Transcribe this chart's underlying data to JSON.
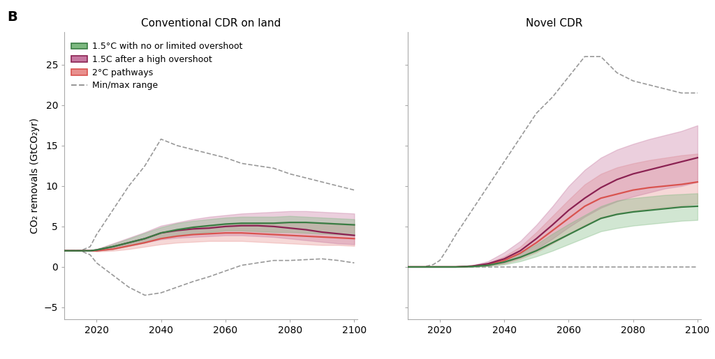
{
  "title_left": "Conventional CDR on land",
  "title_right": "Novel CDR",
  "panel_label": "B",
  "ylabel": "CO₂ removals (GtCO₂yr)",
  "ylim": [
    -6.5,
    29
  ],
  "yticks": [
    -5,
    0,
    5,
    10,
    15,
    20,
    25
  ],
  "xlim": [
    2010,
    2101
  ],
  "xticks": [
    2020,
    2040,
    2060,
    2080,
    2100
  ],
  "legend_labels": [
    "1.5°C with no or limited overshoot",
    "1.5C after a high overshoot",
    "2°C pathways",
    "Min/max range"
  ],
  "colors": {
    "green": "#3a7d44",
    "purple": "#8b2252",
    "red": "#d9534f",
    "dashed": "#999999"
  },
  "fill_colors": {
    "green": "#7cb87f",
    "purple": "#c678a0",
    "red": "#e8908e"
  },
  "left_years": [
    2010,
    2015,
    2018,
    2020,
    2025,
    2030,
    2035,
    2040,
    2045,
    2050,
    2055,
    2060,
    2065,
    2070,
    2075,
    2080,
    2085,
    2090,
    2095,
    2100
  ],
  "left_green_median": [
    2.0,
    2.0,
    2.0,
    2.1,
    2.5,
    3.0,
    3.5,
    4.2,
    4.6,
    4.9,
    5.1,
    5.3,
    5.4,
    5.4,
    5.4,
    5.5,
    5.5,
    5.4,
    5.3,
    5.2
  ],
  "left_green_low": [
    2.0,
    2.0,
    2.0,
    2.0,
    2.2,
    2.6,
    3.0,
    3.6,
    3.9,
    4.1,
    4.3,
    4.5,
    4.5,
    4.4,
    4.3,
    4.3,
    4.2,
    4.1,
    4.0,
    3.9
  ],
  "left_green_high": [
    2.0,
    2.0,
    2.0,
    2.2,
    2.8,
    3.5,
    4.2,
    4.9,
    5.4,
    5.7,
    5.9,
    6.1,
    6.2,
    6.2,
    6.2,
    6.3,
    6.2,
    6.1,
    6.0,
    5.9
  ],
  "left_purple_median": [
    2.0,
    2.0,
    2.0,
    2.1,
    2.5,
    3.0,
    3.5,
    4.2,
    4.5,
    4.7,
    4.8,
    5.0,
    5.1,
    5.1,
    5.0,
    4.8,
    4.6,
    4.3,
    4.1,
    3.9
  ],
  "left_purple_low": [
    2.0,
    2.0,
    2.0,
    2.0,
    2.2,
    2.6,
    3.0,
    3.4,
    3.6,
    3.7,
    3.8,
    3.9,
    3.9,
    3.8,
    3.7,
    3.5,
    3.3,
    3.1,
    2.9,
    2.8
  ],
  "left_purple_high": [
    2.0,
    2.0,
    2.0,
    2.2,
    2.9,
    3.6,
    4.3,
    5.1,
    5.5,
    5.9,
    6.2,
    6.4,
    6.6,
    6.7,
    6.8,
    6.9,
    6.9,
    6.8,
    6.7,
    6.6
  ],
  "left_red_median": [
    2.0,
    2.0,
    2.0,
    2.0,
    2.2,
    2.6,
    3.0,
    3.5,
    3.8,
    4.0,
    4.1,
    4.2,
    4.2,
    4.1,
    4.0,
    3.9,
    3.8,
    3.7,
    3.6,
    3.5
  ],
  "left_red_low": [
    2.0,
    2.0,
    2.0,
    1.9,
    2.0,
    2.2,
    2.5,
    2.8,
    3.0,
    3.1,
    3.2,
    3.2,
    3.2,
    3.1,
    3.0,
    2.9,
    2.8,
    2.7,
    2.7,
    2.6
  ],
  "left_red_high": [
    2.0,
    2.0,
    2.0,
    2.1,
    2.5,
    3.1,
    3.6,
    4.3,
    4.7,
    5.0,
    5.2,
    5.3,
    5.4,
    5.5,
    5.5,
    5.5,
    5.5,
    5.5,
    5.4,
    5.3
  ],
  "left_dashed_high": [
    2.0,
    2.0,
    2.5,
    4.0,
    7.0,
    10.0,
    12.5,
    15.8,
    15.0,
    14.5,
    14.0,
    13.5,
    12.8,
    12.5,
    12.2,
    11.5,
    11.0,
    10.5,
    10.0,
    9.5
  ],
  "left_dashed_low": [
    2.0,
    2.0,
    1.5,
    0.5,
    -1.0,
    -2.5,
    -3.5,
    -3.2,
    -2.5,
    -1.8,
    -1.2,
    -0.5,
    0.2,
    0.5,
    0.8,
    0.8,
    0.9,
    1.0,
    0.8,
    0.5
  ],
  "right_years": [
    2010,
    2015,
    2018,
    2020,
    2022,
    2025,
    2030,
    2035,
    2040,
    2045,
    2050,
    2055,
    2060,
    2065,
    2070,
    2075,
    2080,
    2085,
    2090,
    2095,
    2100
  ],
  "right_green_median": [
    0.0,
    0.0,
    0.0,
    0.0,
    0.0,
    0.0,
    0.05,
    0.2,
    0.6,
    1.2,
    2.0,
    3.0,
    4.0,
    5.0,
    6.0,
    6.5,
    6.8,
    7.0,
    7.2,
    7.4,
    7.5
  ],
  "right_green_low": [
    0.0,
    0.0,
    0.0,
    0.0,
    0.0,
    0.0,
    0.0,
    0.1,
    0.3,
    0.7,
    1.3,
    2.0,
    2.8,
    3.6,
    4.4,
    4.8,
    5.1,
    5.3,
    5.5,
    5.7,
    5.8
  ],
  "right_green_high": [
    0.0,
    0.0,
    0.0,
    0.0,
    0.0,
    0.0,
    0.1,
    0.4,
    0.9,
    1.7,
    2.8,
    4.1,
    5.3,
    6.4,
    7.5,
    8.2,
    8.5,
    8.7,
    8.9,
    9.0,
    9.1
  ],
  "right_purple_median": [
    0.0,
    0.0,
    0.0,
    0.0,
    0.0,
    0.0,
    0.1,
    0.4,
    1.0,
    2.0,
    3.5,
    5.2,
    7.0,
    8.5,
    9.8,
    10.8,
    11.5,
    12.0,
    12.5,
    13.0,
    13.5
  ],
  "right_purple_low": [
    0.0,
    0.0,
    0.0,
    0.0,
    0.0,
    0.0,
    0.05,
    0.2,
    0.5,
    1.2,
    2.2,
    3.5,
    4.9,
    6.2,
    7.3,
    8.1,
    8.7,
    9.2,
    9.7,
    10.0,
    10.5
  ],
  "right_purple_high": [
    0.0,
    0.0,
    0.0,
    0.0,
    0.0,
    0.0,
    0.2,
    0.7,
    1.8,
    3.2,
    5.2,
    7.5,
    10.0,
    12.0,
    13.5,
    14.5,
    15.2,
    15.8,
    16.3,
    16.8,
    17.5
  ],
  "right_red_median": [
    0.0,
    0.0,
    0.0,
    0.0,
    0.0,
    0.0,
    0.1,
    0.3,
    0.8,
    1.7,
    3.0,
    4.5,
    6.0,
    7.5,
    8.5,
    9.0,
    9.5,
    9.8,
    10.0,
    10.2,
    10.5
  ],
  "right_red_low": [
    0.0,
    0.0,
    0.0,
    0.0,
    0.0,
    0.0,
    0.05,
    0.15,
    0.4,
    1.0,
    1.8,
    2.9,
    4.0,
    5.2,
    6.0,
    6.5,
    6.9,
    7.2,
    7.4,
    7.6,
    7.8
  ],
  "right_red_high": [
    0.0,
    0.0,
    0.0,
    0.0,
    0.0,
    0.0,
    0.15,
    0.5,
    1.3,
    2.5,
    4.3,
    6.3,
    8.3,
    10.2,
    11.5,
    12.3,
    12.8,
    13.2,
    13.5,
    13.8,
    14.0
  ],
  "right_dashed_high": [
    0.0,
    0.0,
    0.3,
    0.8,
    2.0,
    4.0,
    7.0,
    10.0,
    13.0,
    16.0,
    19.0,
    21.0,
    23.5,
    26.0,
    26.0,
    24.0,
    23.0,
    22.5,
    22.0,
    21.5,
    21.5
  ],
  "right_dashed_low": [
    0.0,
    0.0,
    0.0,
    0.0,
    0.0,
    0.0,
    0.0,
    0.0,
    0.0,
    0.0,
    0.0,
    0.0,
    0.0,
    0.0,
    0.0,
    0.0,
    0.0,
    0.0,
    0.0,
    0.0,
    0.0
  ],
  "background": "#ffffff"
}
